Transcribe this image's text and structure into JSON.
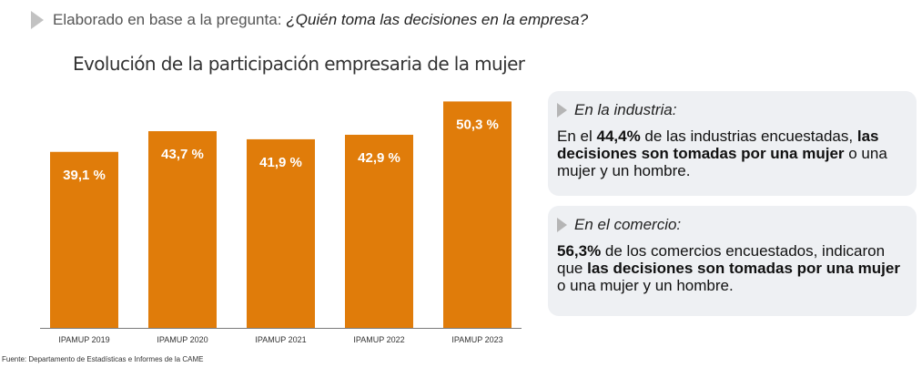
{
  "header": {
    "prefix": "Elaborado en base a la pregunta:",
    "question": "¿Quién toma las decisiones en la empresa?"
  },
  "colors": {
    "bar": "#e07c0a",
    "axis": "#7a7a7a",
    "box_bg": "#eef0f3",
    "arrow": "#c2c2c2"
  },
  "chart_data": {
    "type": "bar",
    "title": "Evolución de la participación empresaria de la mujer",
    "categories": [
      "IPAMUP 2019",
      "IPAMUP 2020",
      "IPAMUP 2021",
      "IPAMUP 2022",
      "IPAMUP 2023"
    ],
    "values": [
      39.1,
      43.7,
      41.9,
      42.9,
      50.3
    ],
    "value_labels": [
      "39,1 %",
      "43,7 %",
      "41,9 %",
      "42,9 %",
      "50,3 %"
    ],
    "unit": "%",
    "ylim": [
      0,
      52
    ],
    "grid": false,
    "legend": "none"
  },
  "source": "Fuente: Departamento de Estadísticas e Informes de la CAME",
  "industry": {
    "title": "En la industria:",
    "t1": "En el ",
    "b1": "44,4%",
    "t2": " de las industrias encuestadas, ",
    "b2": "las decisiones son tomadas por una mujer",
    "t3": " o una mujer y un hombre."
  },
  "commerce": {
    "title": "En el comercio:",
    "b1": "56,3%",
    "t1": " de los comercios encuestados, indicaron que ",
    "b2": "las decisiones son tomadas por una mujer",
    "t2": " o una mujer y un hombre."
  }
}
